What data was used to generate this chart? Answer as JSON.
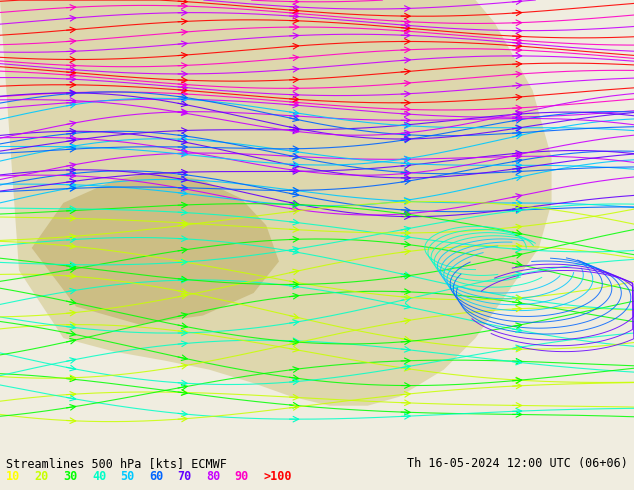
{
  "title_left": "Streamlines 500 hPa [kts] ECMWF",
  "title_right": "Th 16-05-2024 12:00 UTC (06+06)",
  "legend_labels": [
    "10",
    "20",
    "30",
    "40",
    "50",
    "60",
    "70",
    "80",
    "90",
    ">100"
  ],
  "legend_colors": [
    "#ffff00",
    "#c8ff00",
    "#00ff00",
    "#00ffc8",
    "#00c8ff",
    "#0064ff",
    "#6400ff",
    "#c800ff",
    "#ff00c8",
    "#ff0000"
  ],
  "bg_color": "#f5edd8",
  "map_bg": "#d4eeff",
  "streamline_colors_bands": {
    "calm": "#ffff00",
    "light": "#aaff00",
    "moderate": "#00ff00",
    "fresh": "#00ffaa",
    "strong": "#00aaff",
    "gale": "#0044ff",
    "storm": "#6600ff",
    "violent": "#cc00ff",
    "hurricane": "#ff00cc",
    "extreme": "#ff0000"
  },
  "fig_width": 6.34,
  "fig_height": 4.9,
  "dpi": 100
}
